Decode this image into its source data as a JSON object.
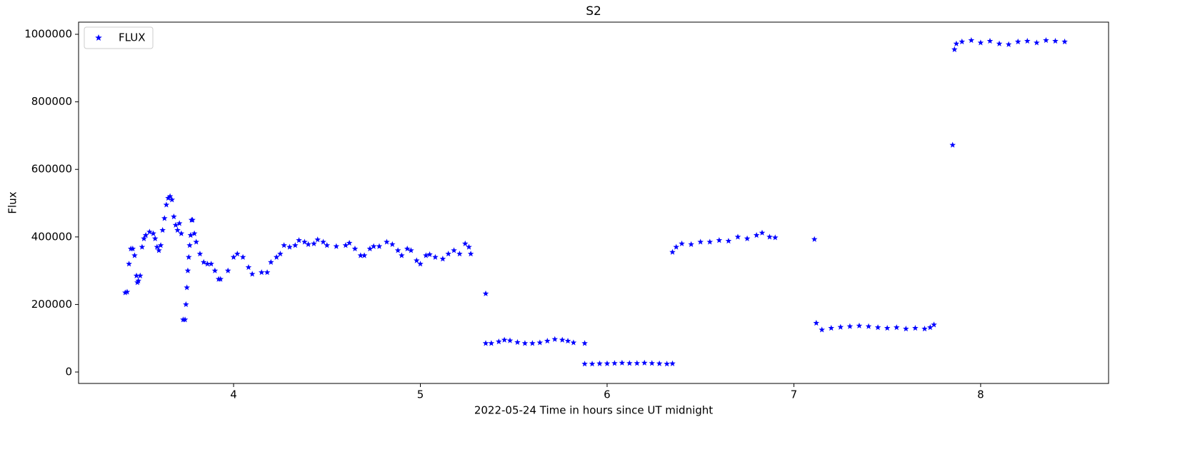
{
  "chart_data": {
    "type": "scatter",
    "title": "S2",
    "x_label": "2022-05-24  Time in hours since UT midnight",
    "y_label": "Flux",
    "x": [
      3.42,
      3.43,
      3.44,
      3.45,
      3.46,
      3.47,
      3.48,
      3.485,
      3.49,
      3.5,
      3.51,
      3.52,
      3.53,
      3.55,
      3.57,
      3.58,
      3.59,
      3.6,
      3.61,
      3.62,
      3.63,
      3.64,
      3.65,
      3.66,
      3.67,
      3.68,
      3.69,
      3.7,
      3.71,
      3.72,
      3.73,
      3.74,
      3.745,
      3.75,
      3.755,
      3.76,
      3.765,
      3.77,
      3.775,
      3.78,
      3.79,
      3.8,
      3.82,
      3.84,
      3.86,
      3.88,
      3.9,
      3.92,
      3.93,
      3.97,
      4.0,
      4.02,
      4.05,
      4.08,
      4.1,
      4.15,
      4.18,
      4.2,
      4.23,
      4.25,
      4.27,
      4.3,
      4.33,
      4.35,
      4.38,
      4.4,
      4.43,
      4.45,
      4.48,
      4.5,
      4.55,
      4.6,
      4.62,
      4.65,
      4.68,
      4.7,
      4.73,
      4.75,
      4.78,
      4.82,
      4.85,
      4.88,
      4.9,
      4.93,
      4.95,
      4.98,
      5.0,
      5.03,
      5.05,
      5.08,
      5.12,
      5.15,
      5.18,
      5.21,
      5.24,
      5.26,
      5.27,
      5.35,
      5.35,
      5.38,
      5.42,
      5.45,
      5.48,
      5.52,
      5.56,
      5.6,
      5.64,
      5.68,
      5.72,
      5.76,
      5.79,
      5.82,
      5.88,
      5.88,
      5.92,
      5.96,
      6.0,
      6.04,
      6.08,
      6.12,
      6.16,
      6.2,
      6.24,
      6.28,
      6.32,
      6.35,
      6.35,
      6.37,
      6.4,
      6.45,
      6.5,
      6.55,
      6.6,
      6.65,
      6.7,
      6.75,
      6.8,
      6.83,
      6.87,
      6.9,
      7.11,
      7.12,
      7.15,
      7.2,
      7.25,
      7.3,
      7.35,
      7.4,
      7.45,
      7.5,
      7.55,
      7.6,
      7.65,
      7.7,
      7.73,
      7.75,
      7.85,
      7.86,
      7.87,
      7.9,
      7.95,
      8.0,
      8.05,
      8.1,
      8.15,
      8.2,
      8.25,
      8.3,
      8.35,
      8.4,
      8.45
    ],
    "series": [
      {
        "name": "FLUX",
        "color": "#0000ff",
        "values": [
          235000,
          237000,
          320000,
          365000,
          365000,
          345000,
          285000,
          265000,
          270000,
          285000,
          370000,
          395000,
          405000,
          415000,
          410000,
          395000,
          370000,
          360000,
          375000,
          420000,
          455000,
          495000,
          515000,
          520000,
          510000,
          460000,
          435000,
          420000,
          440000,
          410000,
          155000,
          155000,
          200000,
          250000,
          300000,
          340000,
          375000,
          405000,
          450000,
          450000,
          410000,
          385000,
          350000,
          325000,
          320000,
          320000,
          300000,
          275000,
          275000,
          300000,
          340000,
          350000,
          340000,
          310000,
          290000,
          295000,
          295000,
          325000,
          340000,
          350000,
          375000,
          370000,
          375000,
          390000,
          385000,
          378000,
          380000,
          392000,
          385000,
          375000,
          372000,
          375000,
          382000,
          365000,
          345000,
          345000,
          365000,
          372000,
          372000,
          385000,
          378000,
          360000,
          345000,
          365000,
          360000,
          330000,
          320000,
          345000,
          348000,
          340000,
          335000,
          350000,
          360000,
          350000,
          380000,
          370000,
          350000,
          232000,
          85000,
          85000,
          90000,
          95000,
          93000,
          88000,
          85000,
          85000,
          87000,
          92000,
          97000,
          95000,
          92000,
          87000,
          85000,
          24000,
          24000,
          25000,
          25000,
          26000,
          27000,
          26000,
          26000,
          27000,
          26000,
          25000,
          24000,
          25000,
          355000,
          370000,
          380000,
          378000,
          385000,
          385000,
          390000,
          388000,
          400000,
          395000,
          405000,
          412000,
          400000,
          398000,
          393000,
          145000,
          125000,
          130000,
          133000,
          135000,
          137000,
          135000,
          132000,
          130000,
          132000,
          128000,
          130000,
          128000,
          132000,
          140000,
          672000,
          955000,
          972000,
          978000,
          982000,
          975000,
          980000,
          972000,
          970000,
          978000,
          980000,
          975000,
          982000,
          980000,
          978000
        ]
      }
    ],
    "xlim": [
      3.17,
      8.685
    ],
    "xticks": [
      4,
      5,
      6,
      7,
      8
    ],
    "ylim": [
      -33800,
      1036000
    ],
    "yticks": [
      0,
      200000,
      400000,
      600000,
      800000,
      1000000
    ],
    "grid": false,
    "legend": "upper-left",
    "marker": "star"
  }
}
